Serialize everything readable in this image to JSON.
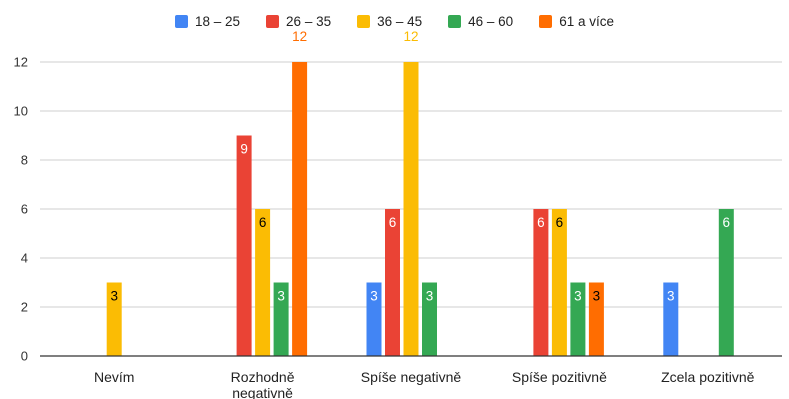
{
  "chart_data": {
    "type": "bar",
    "title": "",
    "xlabel": "",
    "ylabel": "",
    "ylim": [
      0,
      12
    ],
    "yticks": [
      0,
      2,
      4,
      6,
      8,
      10,
      12
    ],
    "grid": true,
    "legend_position": "top-center",
    "categories": [
      "Nevím",
      "Rozhodně negativně",
      "Spíše negativně",
      "Spíše pozitivně",
      "Zcela pozitivně"
    ],
    "series": [
      {
        "name": "18 – 25",
        "color": "#4285f4",
        "values": [
          0,
          0,
          3,
          0,
          3
        ]
      },
      {
        "name": "26 – 35",
        "color": "#ea4335",
        "values": [
          0,
          9,
          6,
          6,
          0
        ]
      },
      {
        "name": "36 – 45",
        "color": "#fbbc04",
        "values": [
          3,
          6,
          12,
          6,
          0
        ]
      },
      {
        "name": "46 – 60",
        "color": "#34a853",
        "values": [
          0,
          3,
          3,
          3,
          6
        ]
      },
      {
        "name": "61 a více",
        "color": "#ff6d01",
        "values": [
          0,
          12,
          0,
          3,
          0
        ]
      }
    ]
  }
}
